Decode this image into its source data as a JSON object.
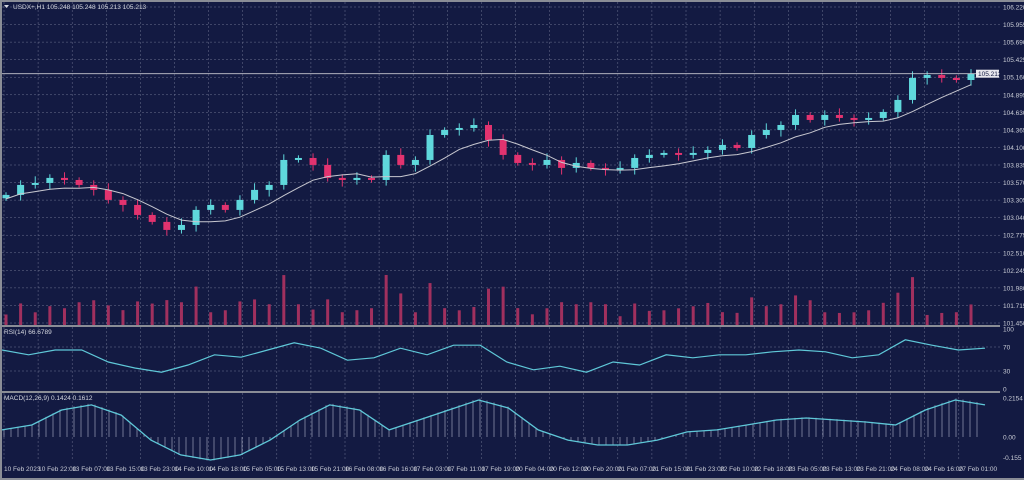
{
  "symbol_header": "USDX+,H1  105.248 105.248 105.213 105.213",
  "rsi_header": "RSI(14) 66.6789",
  "macd_header": "MACD(12,26,9) 0.1424 0.1612",
  "current_price_label": "105.213",
  "colors": {
    "background": "#131a42",
    "grid": "#6d7290",
    "bull": "#5fd8dc",
    "bear": "#e2336f",
    "ma": "#c8c8d0",
    "indicator": "#5fc8d8",
    "volume": "#a0305e"
  },
  "chart_data": [
    {
      "type": "candlestick",
      "title": "USDX+,H1",
      "ylim": [
        101.45,
        106.22
      ],
      "grid": true,
      "y_ticks": [
        "106.220",
        "105.955",
        "105.690",
        "105.425",
        "105.160",
        "104.895",
        "104.630",
        "104.365",
        "104.100",
        "103.835",
        "103.570",
        "103.305",
        "103.040",
        "102.775",
        "102.510",
        "102.245",
        "101.980",
        "101.715",
        "101.450"
      ],
      "x_ticks": [
        "10 Feb 2023",
        "10 Feb 22:00",
        "13 Feb 07:00",
        "13 Feb 15:00",
        "13 Feb 23:00",
        "14 Feb 10:00",
        "14 Feb 18:00",
        "15 Feb 05:00",
        "15 Feb 13:00",
        "15 Feb 21:00",
        "16 Feb 08:00",
        "16 Feb 16:00",
        "17 Feb 03:00",
        "17 Feb 11:00",
        "17 Feb 19:00",
        "20 Feb 04:00",
        "20 Feb 12:00",
        "20 Feb 20:00",
        "21 Feb 07:00",
        "21 Feb 15:00",
        "21 Feb 23:00",
        "22 Feb 10:00",
        "22 Feb 18:00",
        "23 Feb 05:00",
        "23 Feb 13:00",
        "23 Feb 21:00",
        "24 Feb 08:00",
        "24 Feb 16:00",
        "27 Feb 01:00"
      ],
      "closes": [
        103.383,
        103.534,
        103.564,
        103.64,
        103.609,
        103.534,
        103.459,
        103.308,
        103.232,
        103.081,
        102.976,
        102.855,
        102.93,
        103.157,
        103.232,
        103.157,
        103.308,
        103.459,
        103.534,
        103.911,
        103.941,
        103.836,
        103.64,
        103.609,
        103.64,
        103.609,
        103.987,
        103.836,
        103.911,
        104.288,
        104.364,
        104.394,
        104.439,
        104.213,
        103.987,
        103.866,
        103.836,
        103.911,
        103.791,
        103.866,
        103.791,
        103.76,
        103.791,
        103.941,
        103.987,
        104.017,
        103.987,
        104.017,
        104.062,
        104.138,
        104.092,
        104.288,
        104.364,
        104.439,
        104.59,
        104.515,
        104.59,
        104.545,
        104.515,
        104.545,
        104.636,
        104.817,
        105.149,
        105.194,
        105.149,
        105.118,
        105.213
      ],
      "last_price": 105.213
    },
    {
      "type": "line",
      "title": "RSI(14) 66.6789",
      "ylim": [
        0,
        100
      ],
      "y_ticks": [
        "100",
        "70",
        "30",
        "0"
      ],
      "values": [
        65,
        57,
        65,
        65,
        45,
        35,
        28,
        40,
        57,
        53,
        65,
        77,
        68,
        48,
        52,
        68,
        57,
        73,
        73,
        45,
        32,
        38,
        28,
        45,
        40,
        57,
        52,
        57,
        57,
        62,
        65,
        62,
        52,
        57,
        82,
        73,
        65,
        68
      ]
    },
    {
      "type": "line",
      "title": "MACD(12,26,9) 0.1424 0.1612",
      "ylim": [
        -0.155,
        0.2154
      ],
      "y_ticks": [
        "0.2154",
        "0.00",
        "-0.155"
      ],
      "values": [
        0.039,
        0.066,
        0.149,
        0.177,
        0.121,
        -0.017,
        -0.099,
        -0.127,
        -0.099,
        -0.017,
        0.094,
        0.177,
        0.149,
        0.039,
        0.094,
        0.149,
        0.204,
        0.16,
        0.039,
        -0.017,
        -0.044,
        -0.044,
        -0.017,
        0.028,
        0.039,
        0.066,
        0.094,
        0.105,
        0.094,
        0.083,
        0.066,
        0.149,
        0.204,
        0.177
      ]
    }
  ]
}
